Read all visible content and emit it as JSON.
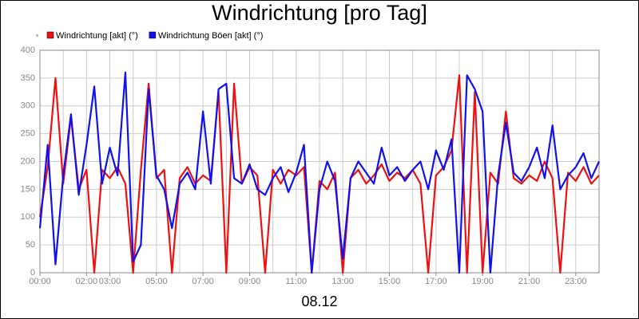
{
  "chart_data": {
    "type": "line",
    "title": "Windrichtung [pro Tag]",
    "subtitle": "08.12",
    "x": [
      0,
      20,
      40,
      60,
      80,
      100,
      120,
      140,
      160,
      180,
      200,
      220,
      240,
      260,
      280,
      300,
      320,
      340,
      360,
      380,
      400,
      420,
      440,
      460,
      480,
      500,
      520,
      540,
      560,
      580,
      600,
      620,
      640,
      660,
      680,
      700,
      720,
      740,
      760,
      780,
      800,
      820,
      840,
      860,
      880,
      900,
      920,
      940,
      960,
      980,
      1000,
      1020,
      1040,
      1060,
      1080,
      1100,
      1120,
      1140,
      1160,
      1180,
      1200,
      1220,
      1240,
      1260,
      1280,
      1300,
      1320,
      1340,
      1360,
      1380,
      1400,
      1420,
      1440
    ],
    "series": [
      {
        "name": "Windrichtung [akt] (°)",
        "color": "#ee1111",
        "values": [
          100,
          190,
          350,
          160,
          280,
          150,
          185,
          0,
          185,
          170,
          190,
          160,
          0,
          185,
          340,
          170,
          185,
          0,
          170,
          190,
          160,
          175,
          165,
          325,
          0,
          340,
          160,
          190,
          175,
          0,
          185,
          160,
          185,
          175,
          190,
          0,
          165,
          150,
          180,
          0,
          170,
          185,
          160,
          175,
          195,
          165,
          180,
          170,
          185,
          160,
          0,
          175,
          190,
          220,
          355,
          0,
          325,
          0,
          180,
          160,
          290,
          170,
          160,
          175,
          165,
          200,
          170,
          0,
          180,
          165,
          190,
          160,
          175
        ]
      },
      {
        "name": "Windrichtung Böen [akt] (°)",
        "color": "#1111ee",
        "values": [
          80,
          230,
          15,
          175,
          285,
          140,
          230,
          335,
          160,
          225,
          175,
          360,
          20,
          50,
          330,
          175,
          150,
          80,
          160,
          180,
          150,
          290,
          160,
          330,
          340,
          170,
          160,
          195,
          150,
          140,
          170,
          190,
          145,
          180,
          230,
          0,
          150,
          200,
          165,
          25,
          170,
          200,
          180,
          160,
          225,
          175,
          190,
          165,
          185,
          200,
          150,
          220,
          185,
          240,
          0,
          355,
          330,
          290,
          0,
          175,
          270,
          180,
          165,
          190,
          225,
          170,
          265,
          150,
          175,
          190,
          215,
          170,
          200
        ]
      }
    ],
    "xlim": [
      0,
      1440
    ],
    "xticks": [
      {
        "value": 0,
        "label": "00:00"
      },
      {
        "value": 120,
        "label": "02:00"
      },
      {
        "value": 180,
        "label": "03:00"
      },
      {
        "value": 300,
        "label": "05:00"
      },
      {
        "value": 420,
        "label": "07:00"
      },
      {
        "value": 540,
        "label": "09:00"
      },
      {
        "value": 660,
        "label": "11:00"
      },
      {
        "value": 780,
        "label": "13:00"
      },
      {
        "value": 900,
        "label": "15:00"
      },
      {
        "value": 1020,
        "label": "17:00"
      },
      {
        "value": 1140,
        "label": "19:00"
      },
      {
        "value": 1260,
        "label": "21:00"
      },
      {
        "value": 1380,
        "label": "23:00"
      }
    ],
    "xgrid": [
      0,
      60,
      120,
      180,
      240,
      300,
      360,
      420,
      480,
      540,
      600,
      660,
      720,
      780,
      840,
      900,
      960,
      1020,
      1080,
      1140,
      1200,
      1260,
      1320,
      1380,
      1440
    ],
    "ylim": [
      0,
      400
    ],
    "yticks": [
      0,
      50,
      100,
      150,
      200,
      250,
      300,
      350,
      400
    ],
    "grid": true
  }
}
